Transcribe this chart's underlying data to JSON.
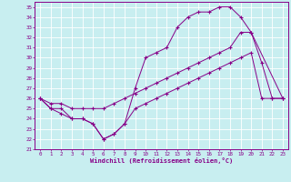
{
  "xlabel": "Windchill (Refroidissement éolien,°C)",
  "background_color": "#c8eef0",
  "line_color": "#880088",
  "xlim": [
    -0.5,
    23.5
  ],
  "ylim": [
    21,
    35.5
  ],
  "yticks": [
    21,
    22,
    23,
    24,
    25,
    26,
    27,
    28,
    29,
    30,
    31,
    32,
    33,
    34,
    35
  ],
  "xticks": [
    0,
    1,
    2,
    3,
    4,
    5,
    6,
    7,
    8,
    9,
    10,
    11,
    12,
    13,
    14,
    15,
    16,
    17,
    18,
    19,
    20,
    21,
    22,
    23
  ],
  "curve1_x": [
    0,
    1,
    2,
    3,
    4,
    5,
    6,
    7,
    8,
    9,
    10,
    11,
    12,
    13,
    14,
    15,
    16,
    17,
    18,
    19,
    20,
    21,
    22,
    23
  ],
  "curve1_y": [
    26,
    25,
    25,
    24,
    24,
    23.5,
    22,
    22.5,
    23.5,
    27,
    30,
    30.5,
    31,
    33,
    34,
    34.5,
    34.5,
    35,
    35,
    34,
    32.5,
    29.5,
    26,
    26
  ],
  "curve2_x": [
    0,
    1,
    2,
    3,
    4,
    5,
    6,
    7,
    8,
    9,
    10,
    11,
    12,
    13,
    14,
    15,
    16,
    17,
    18,
    19,
    20,
    23
  ],
  "curve2_y": [
    26,
    25.5,
    25.5,
    25,
    25,
    25,
    25,
    25.5,
    26,
    26.5,
    27,
    27.5,
    28,
    28.5,
    29,
    29.5,
    30,
    30.5,
    31,
    32.5,
    32.5,
    26
  ],
  "curve3_x": [
    0,
    1,
    2,
    3,
    4,
    5,
    6,
    7,
    8,
    9,
    10,
    11,
    12,
    13,
    14,
    15,
    16,
    17,
    18,
    19,
    20,
    21,
    22,
    23
  ],
  "curve3_y": [
    26,
    25,
    24.5,
    24,
    24,
    23.5,
    22,
    22.5,
    23.5,
    25,
    25.5,
    26,
    26.5,
    27,
    27.5,
    28,
    28.5,
    29,
    29.5,
    30,
    30.5,
    26,
    26,
    26
  ]
}
